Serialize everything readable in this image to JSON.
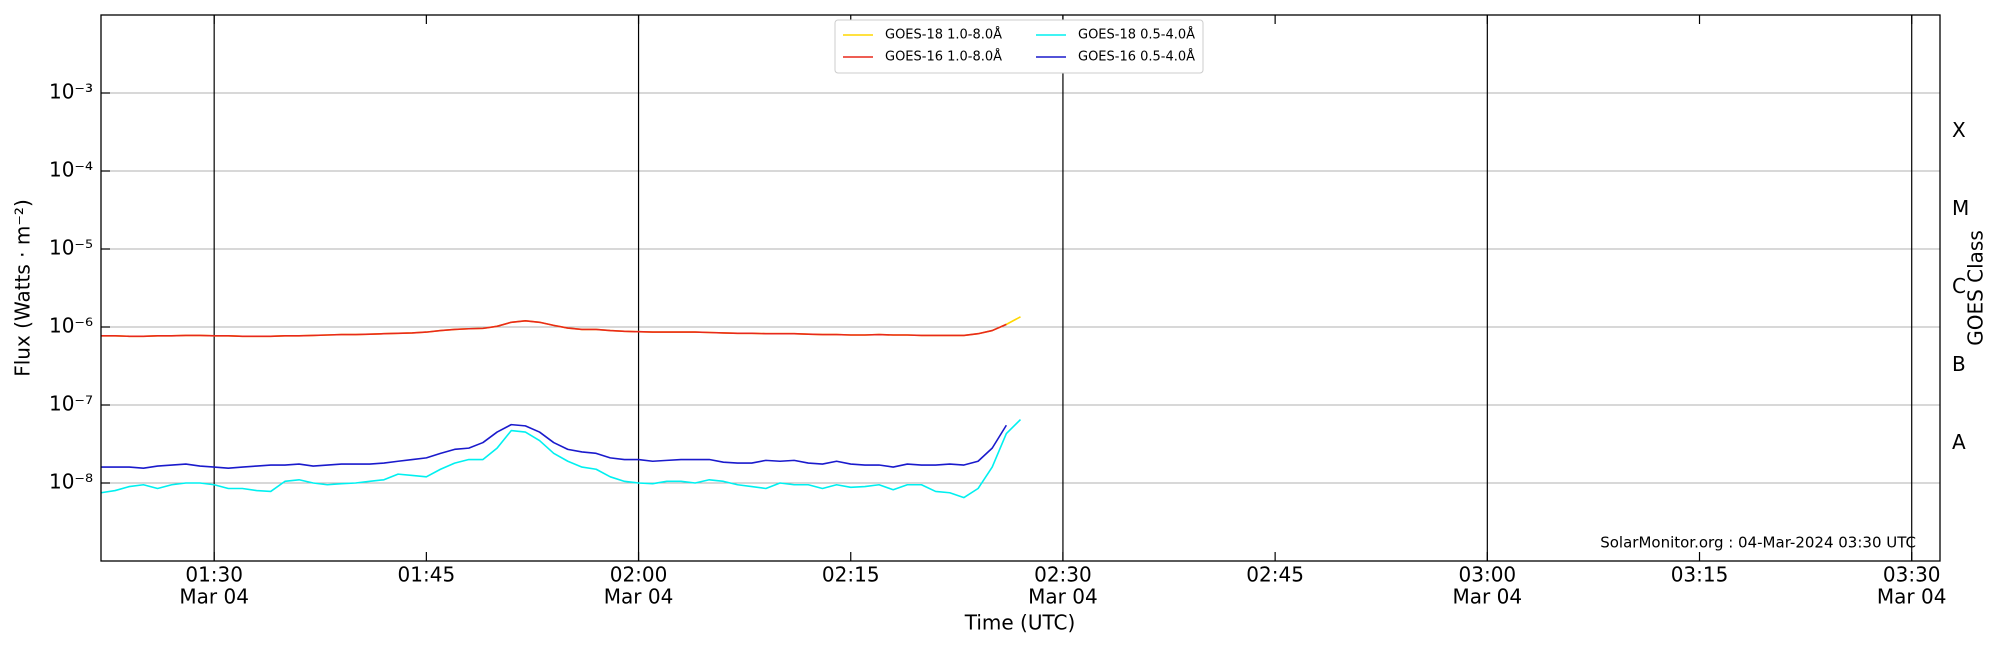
{
  "chart_data": {
    "type": "line",
    "yscale": "log",
    "xlabel": "Time (UTC)",
    "ylabel": "Flux (Watts · m⁻²)",
    "y2label": "GOES Class",
    "annotation": "SolarMonitor.org : 04-Mar-2024 03:30 UTC",
    "xlim": [
      82,
      212
    ],
    "xticks": [
      {
        "value": 90,
        "label": "01:30"
      },
      {
        "value": 105,
        "label": "01:45"
      },
      {
        "value": 120,
        "label": "02:00"
      },
      {
        "value": 135,
        "label": "02:15"
      },
      {
        "value": 150,
        "label": "02:30"
      },
      {
        "value": 165,
        "label": "02:45"
      },
      {
        "value": 180,
        "label": "03:00"
      },
      {
        "value": 195,
        "label": "03:15"
      },
      {
        "value": 210,
        "label": "03:30"
      }
    ],
    "xtick_dates": [
      "Mar 04",
      null,
      "Mar 04",
      null,
      "Mar 04",
      null,
      "Mar 04",
      null,
      "Mar 04"
    ],
    "vlines": [
      90,
      120,
      150,
      180,
      210
    ],
    "ylim": [
      1e-09,
      0.01
    ],
    "yticks": [
      {
        "value": 1e-08,
        "label": "10⁻⁸"
      },
      {
        "value": 1e-07,
        "label": "10⁻⁷"
      },
      {
        "value": 1e-06,
        "label": "10⁻⁶"
      },
      {
        "value": 1e-05,
        "label": "10⁻⁵"
      },
      {
        "value": 0.0001,
        "label": "10⁻⁴"
      },
      {
        "value": 0.001,
        "label": "10⁻³"
      }
    ],
    "y2lim": [
      1e-09,
      0.01
    ],
    "y2ticks": [
      {
        "value": 3.2e-08,
        "label": "A"
      },
      {
        "value": 3.2e-07,
        "label": "B"
      },
      {
        "value": 3.2e-06,
        "label": "C"
      },
      {
        "value": 3.2e-05,
        "label": "M"
      },
      {
        "value": 0.00032,
        "label": "X"
      }
    ],
    "grid": true,
    "legend": "upper center",
    "x": [
      82,
      83,
      84,
      85,
      86,
      87,
      88,
      89,
      90,
      91,
      92,
      93,
      94,
      95,
      96,
      97,
      98,
      99,
      100,
      101,
      102,
      103,
      104,
      105,
      106,
      107,
      108,
      109,
      110,
      111,
      112,
      113,
      114,
      115,
      116,
      117,
      118,
      119,
      120,
      121,
      122,
      123,
      124,
      125,
      126,
      127,
      128,
      129,
      130,
      131,
      132,
      133,
      134,
      135,
      136,
      137,
      138,
      139,
      140,
      141,
      142,
      143,
      144,
      145,
      146,
      147
    ],
    "series": [
      {
        "name": "GOES-18 1.0-8.0Å",
        "color": "#ffd700",
        "values": [
          7.7e-07,
          7.7e-07,
          7.6e-07,
          7.6e-07,
          7.7e-07,
          7.7e-07,
          7.8e-07,
          7.8e-07,
          7.7e-07,
          7.7e-07,
          7.6e-07,
          7.6e-07,
          7.6e-07,
          7.7e-07,
          7.7e-07,
          7.8e-07,
          7.9e-07,
          8e-07,
          8e-07,
          8.1e-07,
          8.2e-07,
          8.3e-07,
          8.4e-07,
          8.6e-07,
          9e-07,
          9.3e-07,
          9.5e-07,
          9.6e-07,
          1.02e-06,
          1.15e-06,
          1.2e-06,
          1.15e-06,
          1.05e-06,
          9.7e-07,
          9.3e-07,
          9.3e-07,
          9e-07,
          8.8e-07,
          8.7e-07,
          8.6e-07,
          8.6e-07,
          8.6e-07,
          8.6e-07,
          8.5e-07,
          8.4e-07,
          8.3e-07,
          8.3e-07,
          8.2e-07,
          8.2e-07,
          8.2e-07,
          8.1e-07,
          8e-07,
          8e-07,
          7.9e-07,
          7.9e-07,
          8e-07,
          7.9e-07,
          7.9e-07,
          7.8e-07,
          7.8e-07,
          7.8e-07,
          7.8e-07,
          8.2e-07,
          9e-07,
          1.08e-06,
          1.35e-06
        ]
      },
      {
        "name": "GOES-16 1.0-8.0Å",
        "color": "#e8291c",
        "values": [
          7.7e-07,
          7.7e-07,
          7.6e-07,
          7.6e-07,
          7.7e-07,
          7.7e-07,
          7.8e-07,
          7.8e-07,
          7.7e-07,
          7.7e-07,
          7.6e-07,
          7.6e-07,
          7.6e-07,
          7.7e-07,
          7.7e-07,
          7.8e-07,
          7.9e-07,
          8e-07,
          8e-07,
          8.1e-07,
          8.2e-07,
          8.3e-07,
          8.4e-07,
          8.6e-07,
          9e-07,
          9.3e-07,
          9.5e-07,
          9.6e-07,
          1.02e-06,
          1.15e-06,
          1.2e-06,
          1.15e-06,
          1.05e-06,
          9.7e-07,
          9.3e-07,
          9.3e-07,
          9e-07,
          8.8e-07,
          8.7e-07,
          8.6e-07,
          8.6e-07,
          8.6e-07,
          8.6e-07,
          8.5e-07,
          8.4e-07,
          8.3e-07,
          8.3e-07,
          8.2e-07,
          8.2e-07,
          8.2e-07,
          8.1e-07,
          8e-07,
          8e-07,
          7.9e-07,
          7.9e-07,
          8e-07,
          7.9e-07,
          7.9e-07,
          7.8e-07,
          7.8e-07,
          7.8e-07,
          7.8e-07,
          8.2e-07,
          9e-07,
          1.08e-06,
          null
        ]
      },
      {
        "name": "GOES-18 0.5-4.0Å",
        "color": "#00f0f0",
        "values": [
          7.5e-09,
          8e-09,
          9e-09,
          9.5e-09,
          8.5e-09,
          9.5e-09,
          1e-08,
          1e-08,
          9.5e-09,
          8.5e-09,
          8.5e-09,
          8e-09,
          7.8e-09,
          1.05e-08,
          1.1e-08,
          1e-08,
          9.5e-09,
          9.8e-09,
          1e-08,
          1.05e-08,
          1.1e-08,
          1.3e-08,
          1.25e-08,
          1.2e-08,
          1.5e-08,
          1.8e-08,
          2e-08,
          2e-08,
          2.8e-08,
          4.7e-08,
          4.5e-08,
          3.5e-08,
          2.4e-08,
          1.9e-08,
          1.6e-08,
          1.5e-08,
          1.2e-08,
          1.05e-08,
          1e-08,
          9.8e-09,
          1.05e-08,
          1.05e-08,
          1e-08,
          1.1e-08,
          1.05e-08,
          9.5e-09,
          9e-09,
          8.5e-09,
          1e-08,
          9.5e-09,
          9.5e-09,
          8.5e-09,
          9.5e-09,
          8.8e-09,
          9e-09,
          9.5e-09,
          8.2e-09,
          9.5e-09,
          9.5e-09,
          7.8e-09,
          7.5e-09,
          6.5e-09,
          8.5e-09,
          1.6e-08,
          4.3e-08,
          6.5e-08
        ]
      },
      {
        "name": "GOES-16 0.5-4.0Å",
        "color": "#1a1acc",
        "values": [
          1.6e-08,
          1.6e-08,
          1.6e-08,
          1.55e-08,
          1.65e-08,
          1.7e-08,
          1.75e-08,
          1.65e-08,
          1.6e-08,
          1.55e-08,
          1.6e-08,
          1.65e-08,
          1.7e-08,
          1.7e-08,
          1.75e-08,
          1.65e-08,
          1.7e-08,
          1.75e-08,
          1.75e-08,
          1.75e-08,
          1.8e-08,
          1.9e-08,
          2e-08,
          2.1e-08,
          2.4e-08,
          2.7e-08,
          2.8e-08,
          3.3e-08,
          4.5e-08,
          5.6e-08,
          5.4e-08,
          4.5e-08,
          3.3e-08,
          2.7e-08,
          2.5e-08,
          2.4e-08,
          2.1e-08,
          2e-08,
          2e-08,
          1.9e-08,
          1.95e-08,
          2e-08,
          2e-08,
          2e-08,
          1.85e-08,
          1.8e-08,
          1.8e-08,
          1.95e-08,
          1.9e-08,
          1.95e-08,
          1.8e-08,
          1.75e-08,
          1.9e-08,
          1.75e-08,
          1.7e-08,
          1.7e-08,
          1.6e-08,
          1.75e-08,
          1.7e-08,
          1.7e-08,
          1.75e-08,
          1.7e-08,
          1.9e-08,
          2.8e-08,
          5.5e-08,
          null
        ]
      }
    ]
  }
}
